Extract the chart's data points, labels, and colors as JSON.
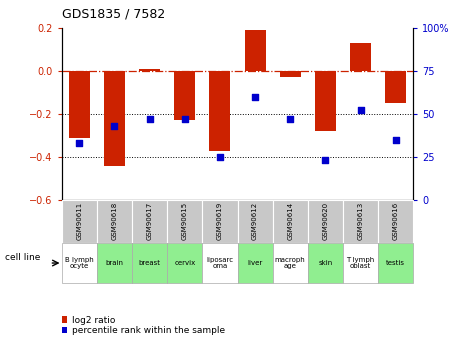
{
  "title": "GDS1835 / 7582",
  "samples": [
    "GSM90611",
    "GSM90618",
    "GSM90617",
    "GSM90615",
    "GSM90619",
    "GSM90612",
    "GSM90614",
    "GSM90620",
    "GSM90613",
    "GSM90616"
  ],
  "cell_lines": [
    "B lymph\nocyte",
    "brain",
    "breast",
    "cervix",
    "liposarc\noma",
    "liver",
    "macroph\nage",
    "skin",
    "T lymph\noblast",
    "testis"
  ],
  "cell_line_colors": [
    "#ffffff",
    "#90ee90",
    "#90ee90",
    "#90ee90",
    "#ffffff",
    "#90ee90",
    "#ffffff",
    "#90ee90",
    "#ffffff",
    "#90ee90"
  ],
  "log2_ratio": [
    -0.31,
    -0.44,
    0.01,
    -0.23,
    -0.37,
    0.19,
    -0.03,
    -0.28,
    0.13,
    -0.15
  ],
  "percentile_rank": [
    33,
    43,
    47,
    47,
    25,
    60,
    47,
    23,
    52,
    35
  ],
  "bar_color": "#cc2200",
  "dot_color": "#0000cc",
  "ylim_left": [
    -0.6,
    0.2
  ],
  "ylim_right": [
    0,
    100
  ],
  "yticks_left": [
    -0.6,
    -0.4,
    -0.2,
    0.0,
    0.2
  ],
  "yticks_right": [
    0,
    25,
    50,
    75,
    100
  ],
  "dotted_lines": [
    -0.2,
    -0.4
  ],
  "legend_labels": [
    "log2 ratio",
    "percentile rank within the sample"
  ],
  "legend_colors": [
    "#cc2200",
    "#0000cc"
  ],
  "sample_box_color": "#c8c8c8",
  "plot_bg": "#ffffff"
}
